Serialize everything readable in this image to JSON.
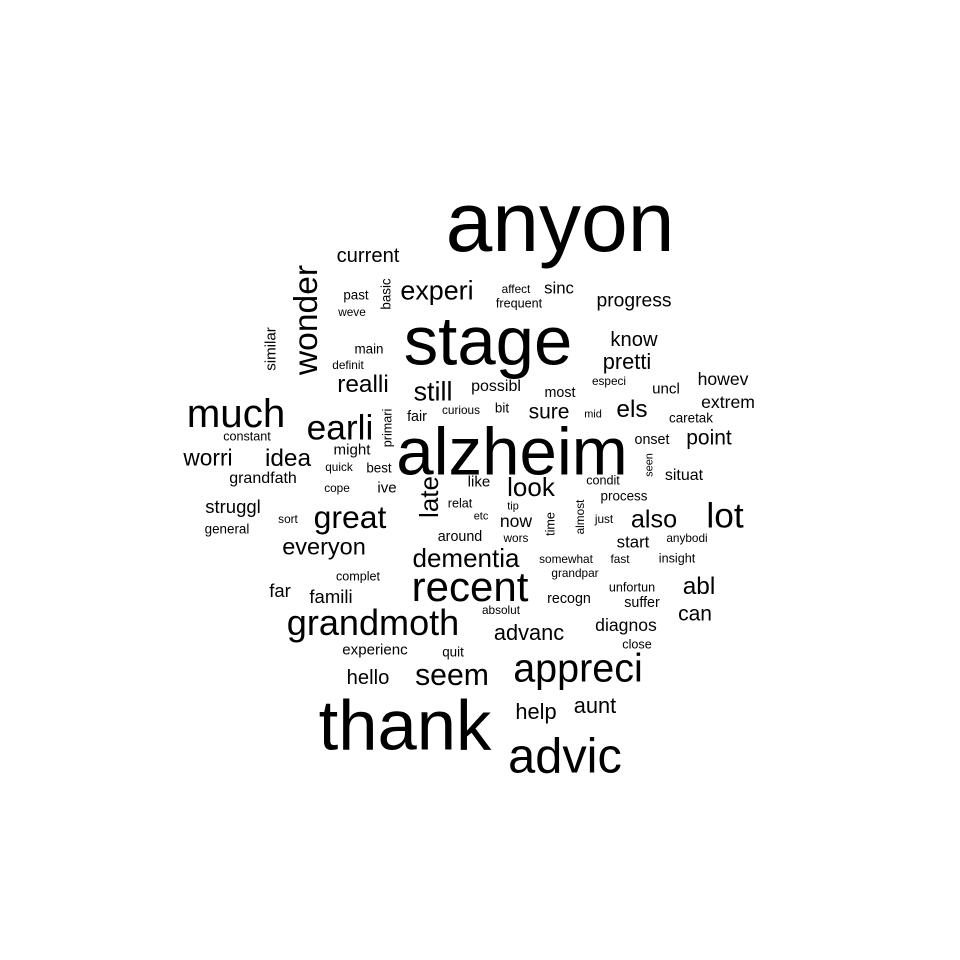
{
  "word_cloud": {
    "text_color": "#000000",
    "background_color": "#ffffff",
    "words": [
      {
        "text": "anyon",
        "weight": 100
      },
      {
        "text": "stage",
        "weight": 82
      },
      {
        "text": "alzheim",
        "weight": 80
      },
      {
        "text": "thank",
        "weight": 84
      },
      {
        "text": "advic",
        "weight": 58
      },
      {
        "text": "recent",
        "weight": 50
      },
      {
        "text": "appreci",
        "weight": 47
      },
      {
        "text": "much",
        "weight": 48
      },
      {
        "text": "grandmoth",
        "weight": 43
      },
      {
        "text": "earli",
        "weight": 42
      },
      {
        "text": "wonder",
        "weight": 40
      },
      {
        "text": "lot",
        "weight": 42
      },
      {
        "text": "great",
        "weight": 38
      },
      {
        "text": "seem",
        "weight": 36
      },
      {
        "text": "experi",
        "weight": 32
      },
      {
        "text": "still",
        "weight": 32
      },
      {
        "text": "dementia",
        "weight": 31
      },
      {
        "text": "look",
        "weight": 31
      },
      {
        "text": "late",
        "weight": 31
      },
      {
        "text": "realli",
        "weight": 29
      },
      {
        "text": "also",
        "weight": 30
      },
      {
        "text": "idea",
        "weight": 29
      },
      {
        "text": "everyon",
        "weight": 28
      },
      {
        "text": "els",
        "weight": 29
      },
      {
        "text": "abl",
        "weight": 29
      },
      {
        "text": "worri",
        "weight": 27
      },
      {
        "text": "advanc",
        "weight": 26
      },
      {
        "text": "help",
        "weight": 26
      },
      {
        "text": "aunt",
        "weight": 26
      },
      {
        "text": "pretti",
        "weight": 26
      },
      {
        "text": "point",
        "weight": 25
      },
      {
        "text": "know",
        "weight": 24
      },
      {
        "text": "can",
        "weight": 25
      },
      {
        "text": "current",
        "weight": 24
      },
      {
        "text": "progress",
        "weight": 23
      },
      {
        "text": "sure",
        "weight": 25
      },
      {
        "text": "hello",
        "weight": 24
      },
      {
        "text": "famili",
        "weight": 22
      },
      {
        "text": "far",
        "weight": 22
      },
      {
        "text": "struggl",
        "weight": 22
      },
      {
        "text": "diagnos",
        "weight": 21
      },
      {
        "text": "howev",
        "weight": 21
      },
      {
        "text": "extrem",
        "weight": 21
      },
      {
        "text": "now",
        "weight": 21
      },
      {
        "text": "start",
        "weight": 20
      },
      {
        "text": "sinc",
        "weight": 20
      },
      {
        "text": "possibl",
        "weight": 19
      },
      {
        "text": "grandfath",
        "weight": 19
      },
      {
        "text": "similar",
        "weight": 18
      },
      {
        "text": "situat",
        "weight": 19
      },
      {
        "text": "experienc",
        "weight": 18
      },
      {
        "text": "uncl",
        "weight": 18
      },
      {
        "text": "might",
        "weight": 18
      },
      {
        "text": "ive",
        "weight": 18
      },
      {
        "text": "like",
        "weight": 18
      },
      {
        "text": "suffer",
        "weight": 17
      },
      {
        "text": "around",
        "weight": 17
      },
      {
        "text": "recogn",
        "weight": 17
      },
      {
        "text": "most",
        "weight": 17
      },
      {
        "text": "onset",
        "weight": 17
      },
      {
        "text": "fair",
        "weight": 17
      },
      {
        "text": "process",
        "weight": 16
      },
      {
        "text": "main",
        "weight": 16
      },
      {
        "text": "past",
        "weight": 16
      },
      {
        "text": "general",
        "weight": 16
      },
      {
        "text": "bit",
        "weight": 16
      },
      {
        "text": "complet",
        "weight": 15
      },
      {
        "text": "quit",
        "weight": 16
      },
      {
        "text": "basic",
        "weight": 16
      },
      {
        "text": "time",
        "weight": 15
      },
      {
        "text": "primari",
        "weight": 15
      },
      {
        "text": "caretak",
        "weight": 16
      },
      {
        "text": "insight",
        "weight": 15
      },
      {
        "text": "best",
        "weight": 16
      },
      {
        "text": "close",
        "weight": 15
      },
      {
        "text": "unfortun",
        "weight": 15
      },
      {
        "text": "frequent",
        "weight": 15
      },
      {
        "text": "constant",
        "weight": 15
      },
      {
        "text": "condit",
        "weight": 15
      },
      {
        "text": "relat",
        "weight": 15
      },
      {
        "text": "just",
        "weight": 14
      },
      {
        "text": "almost",
        "weight": 14
      },
      {
        "text": "cope",
        "weight": 14
      },
      {
        "text": "curious",
        "weight": 14
      },
      {
        "text": "weve",
        "weight": 14
      },
      {
        "text": "affect",
        "weight": 14
      },
      {
        "text": "especi",
        "weight": 14
      },
      {
        "text": "fast",
        "weight": 14
      },
      {
        "text": "somewhat",
        "weight": 14
      },
      {
        "text": "wors",
        "weight": 14
      },
      {
        "text": "absolut",
        "weight": 14
      },
      {
        "text": "grandpar",
        "weight": 14
      },
      {
        "text": "anybodi",
        "weight": 14
      },
      {
        "text": "quick",
        "weight": 14
      },
      {
        "text": "definit",
        "weight": 14
      },
      {
        "text": "mid",
        "weight": 13
      },
      {
        "text": "sort",
        "weight": 14
      },
      {
        "text": "etc",
        "weight": 13
      },
      {
        "text": "tip",
        "weight": 13
      },
      {
        "text": "seen",
        "weight": 13
      }
    ]
  }
}
